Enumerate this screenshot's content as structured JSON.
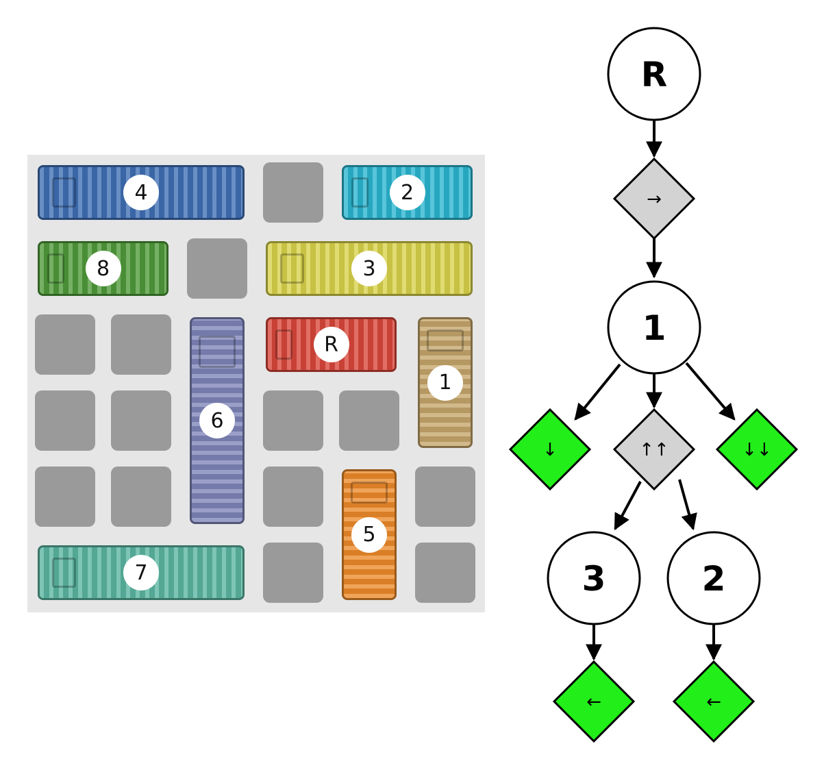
{
  "board": {
    "cars": [
      {
        "id": "4",
        "label": "4",
        "color": "#3f6fb4",
        "name": "car-4"
      },
      {
        "id": "2",
        "label": "2",
        "color": "#2ab5cf",
        "name": "car-2"
      },
      {
        "id": "8",
        "label": "8",
        "color": "#4f9a3a",
        "name": "car-8"
      },
      {
        "id": "3",
        "label": "3",
        "color": "#d8d24a",
        "name": "car-3"
      },
      {
        "id": "6",
        "label": "6",
        "color": "#7e84b8",
        "name": "car-6"
      },
      {
        "id": "R",
        "label": "R",
        "color": "#d9463a",
        "name": "car-r"
      },
      {
        "id": "1",
        "label": "1",
        "color": "#c4a56a",
        "name": "car-1"
      },
      {
        "id": "5",
        "label": "5",
        "color": "#ec8a2a",
        "name": "car-5"
      },
      {
        "id": "7",
        "label": "7",
        "color": "#5ab5a0",
        "name": "car-7"
      }
    ]
  },
  "tree": {
    "colors": {
      "move_allowed": "#22ee1a",
      "move_blocked": "#d3d3d3",
      "node": "#ffffff",
      "stroke": "#000000"
    },
    "nodes": [
      {
        "id": "nR",
        "label": "R"
      },
      {
        "id": "n1",
        "label": "1"
      },
      {
        "id": "n3",
        "label": "3"
      },
      {
        "id": "n2",
        "label": "2"
      }
    ],
    "moves": [
      {
        "id": "mR",
        "label": "→",
        "status": "blocked"
      },
      {
        "id": "m1a",
        "label": "↓",
        "status": "allowed"
      },
      {
        "id": "m1b",
        "label": "↑↑",
        "status": "blocked"
      },
      {
        "id": "m1c",
        "label": "↓↓",
        "status": "allowed"
      },
      {
        "id": "m3",
        "label": "←",
        "status": "allowed"
      },
      {
        "id": "m2",
        "label": "←",
        "status": "allowed"
      }
    ]
  }
}
